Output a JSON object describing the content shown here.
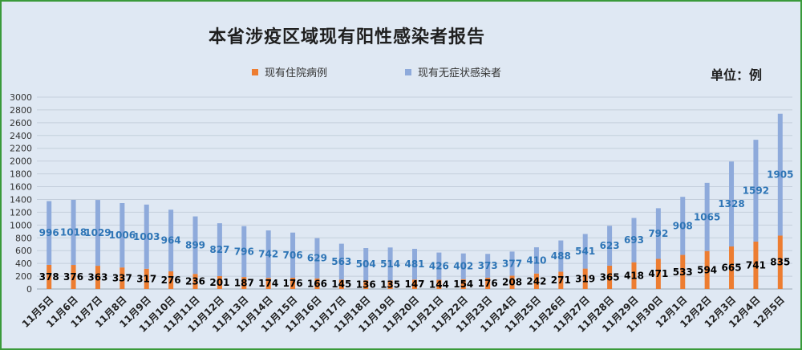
{
  "title": "本省涉疫区域现有阳性感染者报告",
  "unit_label": "单位：例",
  "colors": {
    "hospitalized": "#ed7d31",
    "asymptomatic": "#8eaadb",
    "asym_label": "#2e75b6",
    "hosp_label": "#000000"
  },
  "chart_data": {
    "type": "bar",
    "stacked": true,
    "categories": [
      "11月5日",
      "11月6日",
      "11月7日",
      "11月8日",
      "11月9日",
      "11月10日",
      "11月11日",
      "11月12日",
      "11月13日",
      "11月14日",
      "11月15日",
      "11月16日",
      "11月17日",
      "11月18日",
      "11月19日",
      "11月20日",
      "11月21日",
      "11月22日",
      "11月23日",
      "11月24日",
      "11月25日",
      "11月26日",
      "11月27日",
      "11月28日",
      "11月29日",
      "11月30日",
      "12月1日",
      "12月2日",
      "12月3日",
      "12月4日",
      "12月5日"
    ],
    "series": [
      {
        "name": "现有住院病例",
        "values": [
          378,
          376,
          363,
          337,
          317,
          276,
          236,
          201,
          187,
          174,
          176,
          166,
          145,
          136,
          135,
          147,
          144,
          154,
          176,
          208,
          242,
          271,
          319,
          365,
          418,
          471,
          533,
          594,
          665,
          741,
          835
        ]
      },
      {
        "name": "现有无症状感染者",
        "values": [
          996,
          1018,
          1029,
          1006,
          1003,
          964,
          899,
          827,
          796,
          742,
          706,
          629,
          563,
          504,
          514,
          481,
          426,
          402,
          373,
          377,
          410,
          488,
          541,
          623,
          693,
          792,
          908,
          1065,
          1328,
          1592,
          1905
        ]
      }
    ],
    "ylim": [
      0,
      3000
    ],
    "yticks": [
      "0",
      "200",
      "400",
      "600",
      "800",
      "1000",
      "1200",
      "1400",
      "1600",
      "1800",
      "2000",
      "2200",
      "2400",
      "2600",
      "2800",
      "3000"
    ],
    "grid": true,
    "legend": "top-center"
  }
}
